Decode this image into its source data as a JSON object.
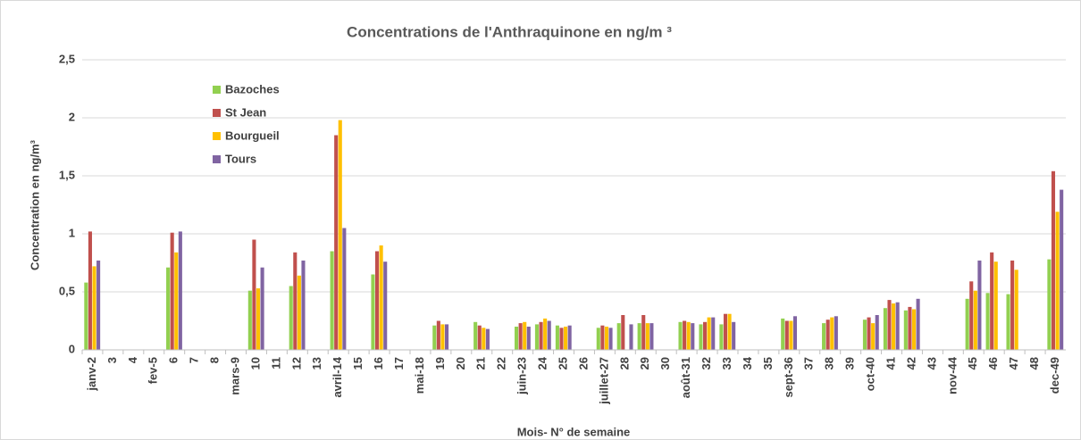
{
  "chart_data": {
    "type": "bar",
    "title": "Concentrations de l'Anthraquinone en ng/m ³",
    "y_label": "Concentration en ng/m³",
    "x_label": "Mois- N° de semaine",
    "categories": [
      "janv-2",
      "3",
      "4",
      "fev-5",
      "6",
      "7",
      "8",
      "mars-9",
      "10",
      "11",
      "12",
      "13",
      "avril-14",
      "15",
      "16",
      "17",
      "mai-18",
      "19",
      "20",
      "21",
      "22",
      "juin-23",
      "24",
      "25",
      "26",
      "juillet-27",
      "28",
      "29",
      "30",
      "août-31",
      "32",
      "33",
      "34",
      "35",
      "sept-36",
      "37",
      "38",
      "39",
      "oct-40",
      "41",
      "42",
      "43",
      "nov-44",
      "45",
      "46",
      "47",
      "48",
      "dec-49"
    ],
    "series": [
      {
        "name": "Bazoches",
        "color": "#92d050",
        "values": [
          0.58,
          null,
          null,
          null,
          0.71,
          null,
          null,
          null,
          0.51,
          null,
          0.55,
          null,
          0.85,
          null,
          0.65,
          null,
          null,
          0.21,
          null,
          0.24,
          null,
          0.2,
          0.22,
          0.21,
          null,
          0.19,
          0.23,
          0.23,
          null,
          0.24,
          0.22,
          0.22,
          null,
          null,
          0.27,
          null,
          0.23,
          null,
          0.26,
          0.36,
          0.34,
          null,
          null,
          0.44,
          0.49,
          0.48,
          null,
          0.78
        ]
      },
      {
        "name": "St Jean",
        "color": "#c0504d",
        "values": [
          1.02,
          null,
          null,
          null,
          1.01,
          null,
          null,
          null,
          0.95,
          null,
          0.84,
          null,
          1.85,
          null,
          0.85,
          null,
          null,
          0.25,
          null,
          0.21,
          null,
          0.23,
          0.24,
          0.19,
          null,
          0.21,
          0.3,
          0.3,
          null,
          0.25,
          0.24,
          0.31,
          null,
          null,
          0.25,
          null,
          0.26,
          null,
          0.28,
          0.43,
          0.37,
          null,
          null,
          0.59,
          0.84,
          0.77,
          null,
          1.54
        ]
      },
      {
        "name": "Bourgueil",
        "color": "#ffc000",
        "values": [
          0.72,
          null,
          null,
          null,
          0.84,
          null,
          null,
          null,
          0.53,
          null,
          0.64,
          null,
          1.98,
          null,
          0.9,
          null,
          null,
          0.22,
          null,
          0.19,
          null,
          0.24,
          0.27,
          0.2,
          null,
          0.2,
          null,
          0.23,
          null,
          0.24,
          0.28,
          0.31,
          null,
          null,
          0.25,
          null,
          0.28,
          null,
          0.23,
          0.4,
          0.35,
          null,
          null,
          0.51,
          0.76,
          0.69,
          null,
          1.19
        ]
      },
      {
        "name": "Tours",
        "color": "#8064a2",
        "values": [
          0.77,
          null,
          null,
          null,
          1.02,
          null,
          null,
          null,
          0.71,
          null,
          0.77,
          null,
          1.05,
          null,
          0.76,
          null,
          null,
          0.22,
          null,
          0.18,
          null,
          0.2,
          0.25,
          0.21,
          null,
          0.19,
          0.22,
          0.23,
          null,
          0.23,
          0.28,
          0.24,
          null,
          null,
          0.29,
          null,
          0.29,
          null,
          0.3,
          0.41,
          0.44,
          null,
          null,
          0.77,
          null,
          null,
          null,
          1.38
        ]
      }
    ],
    "ylim": [
      0,
      2.5
    ],
    "yticks": [
      0,
      {
        "value": 0.5,
        "label": "0,5"
      },
      1,
      {
        "value": 1.5,
        "label": "1,5"
      },
      2,
      {
        "value": 2.5,
        "label": "2,5"
      }
    ],
    "grid": true
  }
}
